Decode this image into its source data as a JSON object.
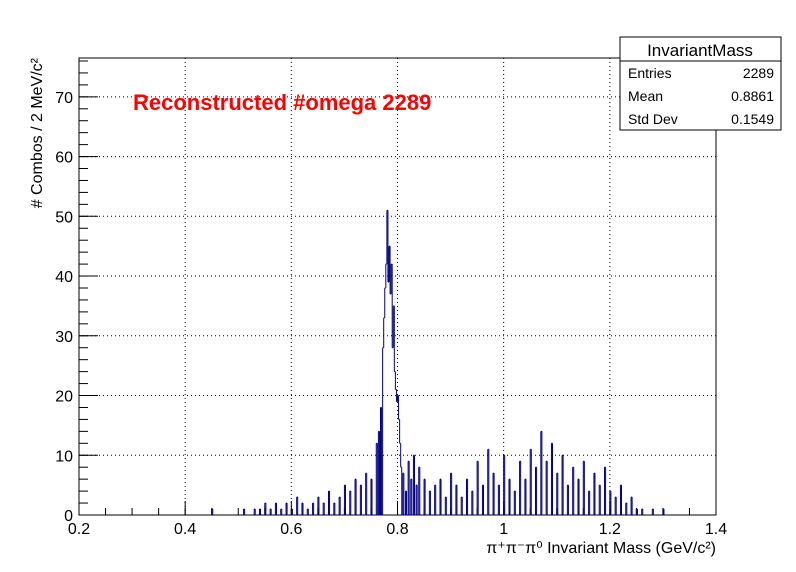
{
  "chart_data": {
    "type": "histogram",
    "annotation": "Reconstructed #omega 2289",
    "xlabel": "π⁺π⁻π⁰ Invariant Mass (GeV/c²)",
    "ylabel": "# Combos / 2 MeV/c²",
    "xlim": [
      0.2,
      1.4
    ],
    "ylim": [
      0,
      76.5
    ],
    "x_ticks": [
      "0.2",
      "0.4",
      "0.6",
      "0.8",
      "1",
      "1.2",
      "1.4"
    ],
    "y_ticks": [
      "0",
      "10",
      "20",
      "30",
      "40",
      "50",
      "60",
      "70"
    ],
    "grid": true,
    "bin_width": 0.002,
    "line_color": "#000080",
    "annotation_color": "#ff0000",
    "bins": [
      [
        0.45,
        1
      ],
      [
        0.51,
        1
      ],
      [
        0.53,
        1
      ],
      [
        0.54,
        1
      ],
      [
        0.55,
        2
      ],
      [
        0.56,
        1
      ],
      [
        0.57,
        2
      ],
      [
        0.58,
        1
      ],
      [
        0.59,
        2
      ],
      [
        0.6,
        1
      ],
      [
        0.61,
        3
      ],
      [
        0.62,
        2
      ],
      [
        0.63,
        1
      ],
      [
        0.64,
        2
      ],
      [
        0.65,
        3
      ],
      [
        0.66,
        2
      ],
      [
        0.67,
        4
      ],
      [
        0.68,
        2
      ],
      [
        0.69,
        3
      ],
      [
        0.7,
        5
      ],
      [
        0.71,
        4
      ],
      [
        0.72,
        6
      ],
      [
        0.73,
        5
      ],
      [
        0.74,
        7
      ],
      [
        0.75,
        6
      ],
      [
        0.76,
        12
      ],
      [
        0.764,
        14
      ],
      [
        0.768,
        18
      ],
      [
        0.772,
        28
      ],
      [
        0.774,
        33
      ],
      [
        0.776,
        38
      ],
      [
        0.778,
        42
      ],
      [
        0.78,
        51
      ],
      [
        0.782,
        39
      ],
      [
        0.784,
        45
      ],
      [
        0.786,
        37
      ],
      [
        0.788,
        42
      ],
      [
        0.79,
        28
      ],
      [
        0.792,
        35
      ],
      [
        0.794,
        24
      ],
      [
        0.796,
        21
      ],
      [
        0.798,
        19
      ],
      [
        0.8,
        20
      ],
      [
        0.802,
        16
      ],
      [
        0.804,
        12
      ],
      [
        0.806,
        8
      ],
      [
        0.81,
        7
      ],
      [
        0.815,
        4
      ],
      [
        0.82,
        9
      ],
      [
        0.825,
        6
      ],
      [
        0.83,
        10
      ],
      [
        0.835,
        5
      ],
      [
        0.84,
        8
      ],
      [
        0.85,
        6
      ],
      [
        0.86,
        4
      ],
      [
        0.87,
        5
      ],
      [
        0.88,
        6
      ],
      [
        0.89,
        3
      ],
      [
        0.9,
        7
      ],
      [
        0.91,
        5
      ],
      [
        0.92,
        3
      ],
      [
        0.93,
        6
      ],
      [
        0.94,
        4
      ],
      [
        0.95,
        9
      ],
      [
        0.96,
        5
      ],
      [
        0.97,
        11
      ],
      [
        0.98,
        7
      ],
      [
        0.99,
        5
      ],
      [
        1.0,
        10
      ],
      [
        1.01,
        6
      ],
      [
        1.02,
        4
      ],
      [
        1.03,
        9
      ],
      [
        1.04,
        6
      ],
      [
        1.05,
        11
      ],
      [
        1.06,
        8
      ],
      [
        1.07,
        14
      ],
      [
        1.08,
        9
      ],
      [
        1.09,
        12
      ],
      [
        1.1,
        7
      ],
      [
        1.11,
        10
      ],
      [
        1.12,
        5
      ],
      [
        1.13,
        8
      ],
      [
        1.14,
        6
      ],
      [
        1.15,
        9
      ],
      [
        1.16,
        4
      ],
      [
        1.17,
        7
      ],
      [
        1.18,
        5
      ],
      [
        1.19,
        8
      ],
      [
        1.2,
        4
      ],
      [
        1.21,
        3
      ],
      [
        1.22,
        5
      ],
      [
        1.23,
        2
      ],
      [
        1.24,
        3
      ],
      [
        1.25,
        1
      ],
      [
        1.26,
        1
      ],
      [
        1.28,
        1
      ],
      [
        1.3,
        1
      ]
    ]
  },
  "stats_box": {
    "title": "InvariantMass",
    "rows": [
      {
        "label": "Entries",
        "value": "2289"
      },
      {
        "label": "Mean",
        "value": "0.8861"
      },
      {
        "label": "Std Dev",
        "value": "0.1549"
      }
    ]
  }
}
